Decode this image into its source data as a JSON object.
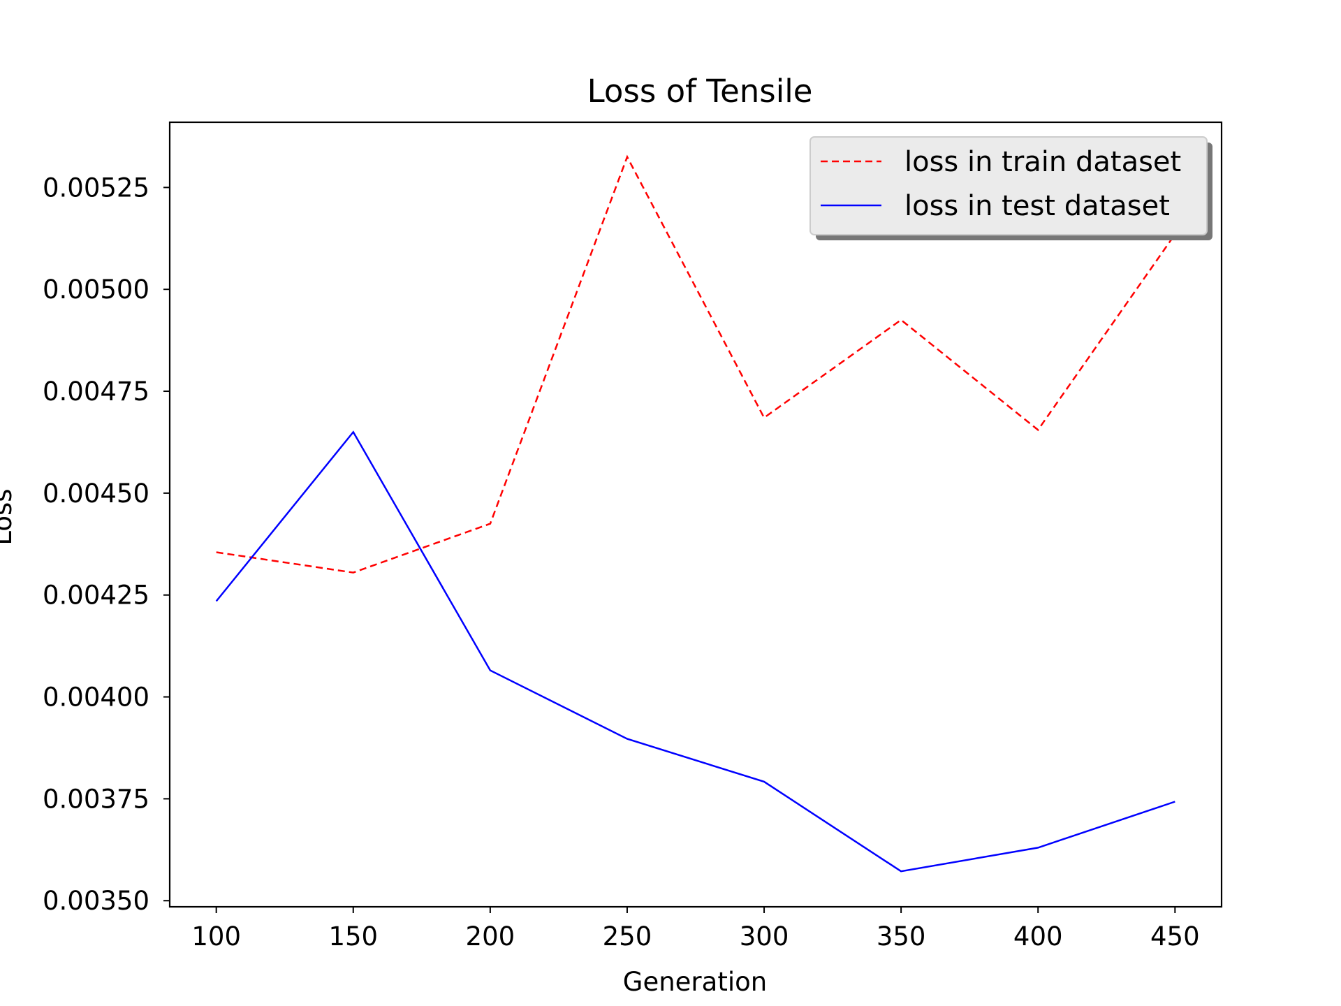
{
  "chart_data": {
    "type": "line",
    "title": "Loss of Tensile",
    "xlabel": "Generation",
    "ylabel": "Loss",
    "x": [
      100,
      150,
      200,
      250,
      300,
      350,
      400,
      450
    ],
    "xticks": [
      "100",
      "150",
      "200",
      "250",
      "300",
      "350",
      "400",
      "450"
    ],
    "yticks": [
      "0.00350",
      "0.00375",
      "0.00400",
      "0.00425",
      "0.00450",
      "0.00475",
      "0.00500",
      "0.00525"
    ],
    "xlim": [
      83,
      467
    ],
    "ylim": [
      0.003485,
      0.00541
    ],
    "grid": false,
    "legend_position": "top-right",
    "series": [
      {
        "name": "loss in train dataset",
        "color": "#ff0000",
        "style": "dashed",
        "values": [
          0.004355,
          0.004305,
          0.004425,
          0.005325,
          0.004685,
          0.004925,
          0.004655,
          0.005135
        ]
      },
      {
        "name": "loss in test dataset",
        "color": "#0000ff",
        "style": "solid",
        "values": [
          0.004235,
          0.00465,
          0.004065,
          0.003897,
          0.003792,
          0.003572,
          0.00363,
          0.003743
        ]
      }
    ]
  }
}
